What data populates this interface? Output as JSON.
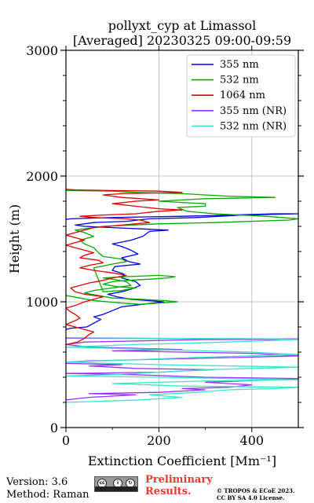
{
  "chart_data": {
    "type": "line",
    "title": "pollyxt_cyp at Limassol",
    "subtitle": "[Averaged] 20230325 09:00-09:59",
    "xlabel": "Extinction Coefficient [Mm⁻¹]",
    "ylabel": "Height (m)",
    "xlim": [
      0,
      500
    ],
    "ylim": [
      0,
      3000
    ],
    "xticks": [
      "0",
      "200",
      "400"
    ],
    "yticks": [
      "0",
      "1000",
      "2000",
      "3000"
    ],
    "grid": true,
    "legend_position": "top-right",
    "series": [
      {
        "name": "355 nm",
        "color": "#0000dd",
        "points": [
          [
            0,
            780
          ],
          [
            10,
            790
          ],
          [
            45,
            800
          ],
          [
            60,
            830
          ],
          [
            75,
            860
          ],
          [
            60,
            880
          ],
          [
            80,
            900
          ],
          [
            100,
            930
          ],
          [
            120,
            960
          ],
          [
            165,
            980
          ],
          [
            210,
            1000
          ],
          [
            175,
            1010
          ],
          [
            140,
            1020
          ],
          [
            110,
            1040
          ],
          [
            90,
            1060
          ],
          [
            120,
            1080
          ],
          [
            140,
            1100
          ],
          [
            160,
            1130
          ],
          [
            150,
            1160
          ],
          [
            120,
            1190
          ],
          [
            125,
            1220
          ],
          [
            100,
            1250
          ],
          [
            105,
            1280
          ],
          [
            160,
            1300
          ],
          [
            135,
            1320
          ],
          [
            120,
            1350
          ],
          [
            155,
            1380
          ],
          [
            140,
            1410
          ],
          [
            120,
            1440
          ],
          [
            100,
            1460
          ],
          [
            140,
            1490
          ],
          [
            165,
            1520
          ],
          [
            180,
            1560
          ],
          [
            220,
            1570
          ],
          [
            160,
            1580
          ],
          [
            100,
            1590
          ],
          [
            40,
            1600
          ],
          [
            20,
            1610
          ],
          [
            60,
            1630
          ],
          [
            130,
            1640
          ],
          [
            180,
            1660
          ],
          [
            280,
            1670
          ],
          [
            380,
            1690
          ],
          [
            500,
            1700
          ],
          [
            450,
            1700
          ],
          [
            350,
            1690
          ],
          [
            250,
            1680
          ],
          [
            170,
            1675
          ],
          [
            100,
            1670
          ],
          [
            50,
            1665
          ],
          [
            10,
            1660
          ],
          [
            0,
            1655
          ]
        ]
      },
      {
        "name": "532 nm",
        "color": "#00aa00",
        "points": [
          [
            0,
            1050
          ],
          [
            30,
            1030
          ],
          [
            60,
            1010
          ],
          [
            120,
            990
          ],
          [
            160,
            980
          ],
          [
            200,
            990
          ],
          [
            240,
            1000
          ],
          [
            210,
            1010
          ],
          [
            160,
            1020
          ],
          [
            100,
            1030
          ],
          [
            70,
            1050
          ],
          [
            40,
            1070
          ],
          [
            60,
            1090
          ],
          [
            100,
            1110
          ],
          [
            140,
            1130
          ],
          [
            130,
            1160
          ],
          [
            100,
            1180
          ],
          [
            80,
            1190
          ],
          [
            130,
            1200
          ],
          [
            200,
            1210
          ],
          [
            235,
            1200
          ],
          [
            220,
            1190
          ],
          [
            180,
            1180
          ],
          [
            130,
            1170
          ],
          [
            100,
            1160
          ],
          [
            80,
            1140
          ],
          [
            110,
            1120
          ],
          [
            150,
            1110
          ],
          [
            120,
            1090
          ],
          [
            80,
            1080
          ],
          [
            60,
            1270
          ],
          [
            100,
            1300
          ],
          [
            130,
            1320
          ],
          [
            120,
            1340
          ],
          [
            80,
            1360
          ],
          [
            70,
            1390
          ],
          [
            60,
            1430
          ],
          [
            40,
            1460
          ],
          [
            30,
            1490
          ],
          [
            60,
            1520
          ],
          [
            40,
            1550
          ],
          [
            20,
            1570
          ],
          [
            80,
            1600
          ],
          [
            200,
            1620
          ],
          [
            320,
            1630
          ],
          [
            480,
            1650
          ],
          [
            500,
            1660
          ],
          [
            430,
            1680
          ],
          [
            320,
            1700
          ],
          [
            260,
            1720
          ],
          [
            240,
            1750
          ],
          [
            300,
            1760
          ],
          [
            300,
            1780
          ],
          [
            250,
            1790
          ],
          [
            200,
            1800
          ],
          [
            300,
            1820
          ],
          [
            450,
            1830
          ],
          [
            350,
            1840
          ],
          [
            250,
            1860
          ],
          [
            150,
            1870
          ],
          [
            100,
            1880
          ],
          [
            0,
            1885
          ]
        ]
      },
      {
        "name": "1064 nm",
        "color": "#dd0000",
        "points": [
          [
            0,
            660
          ],
          [
            25,
            680
          ],
          [
            40,
            710
          ],
          [
            50,
            740
          ],
          [
            60,
            760
          ],
          [
            40,
            780
          ],
          [
            20,
            800
          ],
          [
            0,
            820
          ],
          [
            20,
            850
          ],
          [
            30,
            870
          ],
          [
            20,
            900
          ],
          [
            10,
            920
          ],
          [
            0,
            950
          ],
          [
            20,
            970
          ],
          [
            40,
            1000
          ],
          [
            60,
            1020
          ],
          [
            80,
            1040
          ],
          [
            40,
            1060
          ],
          [
            20,
            1080
          ],
          [
            10,
            1110
          ],
          [
            30,
            1130
          ],
          [
            50,
            1150
          ],
          [
            80,
            1170
          ],
          [
            100,
            1190
          ],
          [
            130,
            1210
          ],
          [
            100,
            1230
          ],
          [
            60,
            1250
          ],
          [
            30,
            1270
          ],
          [
            50,
            1290
          ],
          [
            80,
            1310
          ],
          [
            70,
            1330
          ],
          [
            30,
            1350
          ],
          [
            40,
            1370
          ],
          [
            60,
            1390
          ],
          [
            40,
            1410
          ],
          [
            20,
            1430
          ],
          [
            0,
            1450
          ],
          [
            20,
            1470
          ],
          [
            40,
            1490
          ],
          [
            20,
            1510
          ],
          [
            0,
            1530
          ],
          [
            20,
            1550
          ],
          [
            40,
            1570
          ],
          [
            60,
            1590
          ],
          [
            120,
            1610
          ],
          [
            180,
            1630
          ],
          [
            160,
            1650
          ],
          [
            130,
            1660
          ],
          [
            60,
            1670
          ],
          [
            30,
            1680
          ],
          [
            80,
            1690
          ],
          [
            150,
            1700
          ],
          [
            200,
            1720
          ],
          [
            250,
            1730
          ],
          [
            200,
            1740
          ],
          [
            150,
            1760
          ],
          [
            100,
            1780
          ],
          [
            150,
            1800
          ],
          [
            200,
            1810
          ],
          [
            120,
            1830
          ],
          [
            80,
            1850
          ],
          [
            120,
            1860
          ],
          [
            250,
            1870
          ],
          [
            200,
            1880
          ],
          [
            100,
            1885
          ],
          [
            20,
            1890
          ],
          [
            0,
            1895
          ]
        ]
      },
      {
        "name": "355 nm (NR)",
        "color": "#9b30ff",
        "points": [
          [
            0,
            220
          ],
          [
            50,
            240
          ],
          [
            150,
            260
          ],
          [
            50,
            270
          ],
          [
            200,
            280
          ],
          [
            300,
            300
          ],
          [
            250,
            310
          ],
          [
            350,
            320
          ],
          [
            400,
            340
          ],
          [
            300,
            360
          ],
          [
            450,
            380
          ],
          [
            500,
            390
          ],
          [
            300,
            400
          ],
          [
            150,
            420
          ],
          [
            0,
            430
          ],
          [
            200,
            440
          ],
          [
            250,
            450
          ],
          [
            320,
            460
          ],
          [
            150,
            470
          ],
          [
            50,
            490
          ],
          [
            120,
            500
          ],
          [
            0,
            510
          ],
          [
            0,
            520
          ],
          [
            50,
            530
          ],
          [
            160,
            540
          ],
          [
            400,
            560
          ],
          [
            500,
            570
          ],
          [
            400,
            590
          ],
          [
            250,
            600
          ],
          [
            100,
            610
          ],
          [
            250,
            620
          ],
          [
            50,
            640
          ],
          [
            0,
            660
          ],
          [
            40,
            680
          ],
          [
            300,
            700
          ],
          [
            500,
            700
          ],
          [
            500,
            705
          ],
          [
            0,
            710
          ]
        ]
      },
      {
        "name": "532 nm (NR)",
        "color": "#33e8c8",
        "points": [
          [
            0,
            200
          ],
          [
            160,
            220
          ],
          [
            250,
            240
          ],
          [
            180,
            260
          ],
          [
            280,
            280
          ],
          [
            350,
            300
          ],
          [
            450,
            310
          ],
          [
            500,
            320
          ],
          [
            250,
            330
          ],
          [
            100,
            350
          ],
          [
            300,
            370
          ],
          [
            500,
            380
          ],
          [
            350,
            390
          ],
          [
            200,
            400
          ],
          [
            0,
            410
          ],
          [
            100,
            420
          ],
          [
            200,
            440
          ],
          [
            300,
            460
          ],
          [
            500,
            480
          ],
          [
            200,
            500
          ],
          [
            0,
            520
          ],
          [
            150,
            540
          ],
          [
            300,
            560
          ],
          [
            500,
            580
          ],
          [
            400,
            600
          ],
          [
            200,
            620
          ],
          [
            0,
            640
          ],
          [
            150,
            660
          ],
          [
            350,
            680
          ],
          [
            500,
            700
          ],
          [
            450,
            705
          ],
          [
            200,
            710
          ],
          [
            0,
            715
          ]
        ]
      }
    ]
  },
  "footer": {
    "version": "Version: 3.6",
    "method": "Method: Raman",
    "preliminary_line1": "Preliminary",
    "preliminary_line2": "Results.",
    "copyright": "© TROPOS & ECoE 2023.",
    "license": "CC BY SA 4.0 License.",
    "cc_icons": [
      "cc",
      "by",
      "sa"
    ]
  }
}
